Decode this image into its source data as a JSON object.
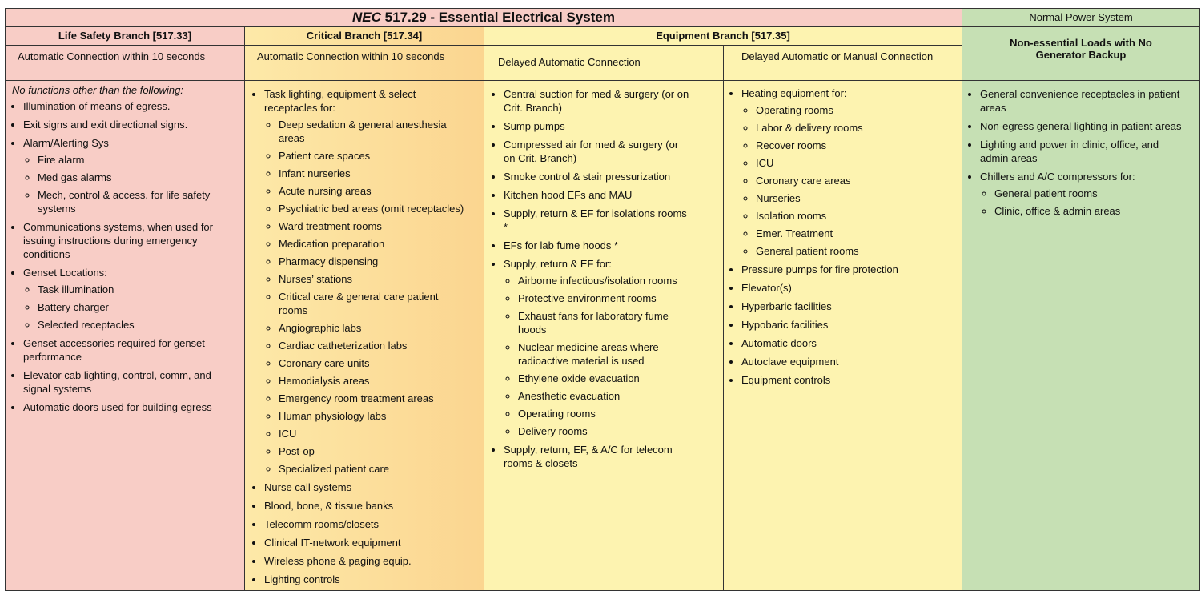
{
  "header": {
    "title_italic": "NEC",
    "title": "517.29 - Essential Electrical System",
    "normal_power": "Normal Power System"
  },
  "branches": [
    "Life Safety Branch [517.33]",
    "Critical Branch [517.34]",
    "Equipment Branch [517.35]",
    "Non-essential Loads with No Generator Backup"
  ],
  "columns": [
    {
      "connection": "Automatic Connection within 10 seconds",
      "intro": "No functions other than the following:",
      "items": [
        {
          "text": "Illumination of means of egress."
        },
        {
          "text": "Exit signs and exit directional signs."
        },
        {
          "text": "Alarm/Alerting Sys",
          "sub": [
            "Fire alarm",
            "Med gas alarms",
            "Mech, control & access. for life safety systems"
          ]
        },
        {
          "text": "Communications systems, when used for issuing instructions during emergency conditions"
        },
        {
          "text": "Genset Locations:",
          "sub": [
            "Task illumination",
            "Battery charger",
            "Selected receptacles"
          ]
        },
        {
          "text": "Genset accessories required for genset performance"
        },
        {
          "text": "Elevator cab lighting, control, comm, and signal systems"
        },
        {
          "text": "Automatic doors used for building egress"
        }
      ]
    },
    {
      "connection": "Automatic Connection within 10 seconds",
      "items": [
        {
          "text": "Task lighting, equipment & select receptacles for:",
          "sub": [
            "Deep sedation & general anesthesia areas",
            "Patient care spaces",
            "Infant nurseries",
            "Acute nursing areas",
            "Psychiatric bed areas (omit receptacles)",
            "Ward treatment rooms",
            "Medication preparation",
            "Pharmacy dispensing",
            "Nurses’ stations",
            "Critical care & general care patient rooms",
            "Angiographic labs",
            "Cardiac catheterization labs",
            "Coronary care units",
            "Hemodialysis areas",
            "Emergency room treatment areas",
            "Human physiology labs",
            "ICU",
            "Post-op",
            "Specialized patient care"
          ]
        },
        {
          "text": "Nurse call systems"
        },
        {
          "text": "Blood, bone, & tissue banks"
        },
        {
          "text": "Telecomm rooms/closets"
        },
        {
          "text": "Clinical IT-network equipment"
        },
        {
          "text": "Wireless phone & paging equip."
        },
        {
          "text": "Lighting controls"
        }
      ]
    },
    {
      "connection": "Delayed Automatic Connection",
      "items": [
        {
          "text": "Central suction for med & surgery (or on Crit. Branch)"
        },
        {
          "text": "Sump pumps"
        },
        {
          "text": "Compressed air for med & surgery (or on Crit. Branch)"
        },
        {
          "text": "Smoke control & stair pressurization"
        },
        {
          "text": "Kitchen hood EFs and MAU"
        },
        {
          "text": "Supply, return & EF for isolations rooms *"
        },
        {
          "text": "EFs for lab fume hoods *"
        },
        {
          "text": "Supply, return & EF for:",
          "sub": [
            "Airborne infectious/isolation rooms",
            "Protective environment rooms",
            "Exhaust fans for laboratory fume hoods",
            "Nuclear medicine areas where radioactive material is used",
            "Ethylene oxide evacuation",
            "Anesthetic evacuation",
            "Operating rooms",
            "Delivery rooms"
          ]
        },
        {
          "text": "Supply, return, EF, & A/C for telecom rooms & closets"
        }
      ]
    },
    {
      "connection": "Delayed Automatic or Manual Connection",
      "items": [
        {
          "text": "Heating equipment for:",
          "sub": [
            "Operating rooms",
            "Labor & delivery rooms",
            "Recover rooms",
            "ICU",
            "Coronary care areas",
            "Nurseries",
            "Isolation rooms",
            "Emer. Treatment",
            "General patient rooms"
          ]
        },
        {
          "text": "Pressure pumps for fire protection"
        },
        {
          "text": "Elevator(s)"
        },
        {
          "text": "Hyperbaric facilities"
        },
        {
          "text": "Hypobaric facilities"
        },
        {
          "text": "Automatic doors"
        },
        {
          "text": "Autoclave equipment"
        },
        {
          "text": "Equipment controls"
        }
      ]
    },
    {
      "items": [
        {
          "text": "General convenience receptacles in patient areas"
        },
        {
          "text": "Non-egress general lighting in patient areas"
        },
        {
          "text": "Lighting and power in clinic, office, and admin areas"
        },
        {
          "text": "Chillers and A/C compressors for:",
          "sub": [
            "General patient rooms",
            "Clinic, office & admin areas"
          ]
        }
      ]
    }
  ]
}
